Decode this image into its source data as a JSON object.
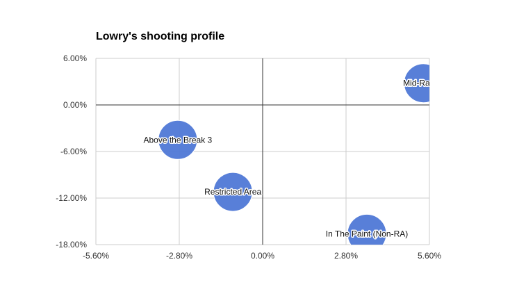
{
  "chart_data": {
    "type": "bubble",
    "title": "Lowry's shooting profile",
    "xlabel": "",
    "ylabel": "",
    "x_ticks": [
      "-5.60%",
      "-2.80%",
      "0.00%",
      "2.80%",
      "5.60%"
    ],
    "y_ticks": [
      "6.00%",
      "0.00%",
      "-6.00%",
      "-12.00%",
      "-18.00%"
    ],
    "xlim": [
      -5.6,
      5.6
    ],
    "ylim": [
      -18,
      6
    ],
    "grid": true,
    "bubble_color": "#4f78d6",
    "points": [
      {
        "label": "Mid-Range",
        "x": 5.4,
        "y": 2.8
      },
      {
        "label": "Above the Break 3",
        "x": -2.85,
        "y": -4.5
      },
      {
        "label": "Restricted Area",
        "x": -1.0,
        "y": -11.2
      },
      {
        "label": "In The Paint (Non-RA)",
        "x": 3.5,
        "y": -16.6
      }
    ]
  }
}
